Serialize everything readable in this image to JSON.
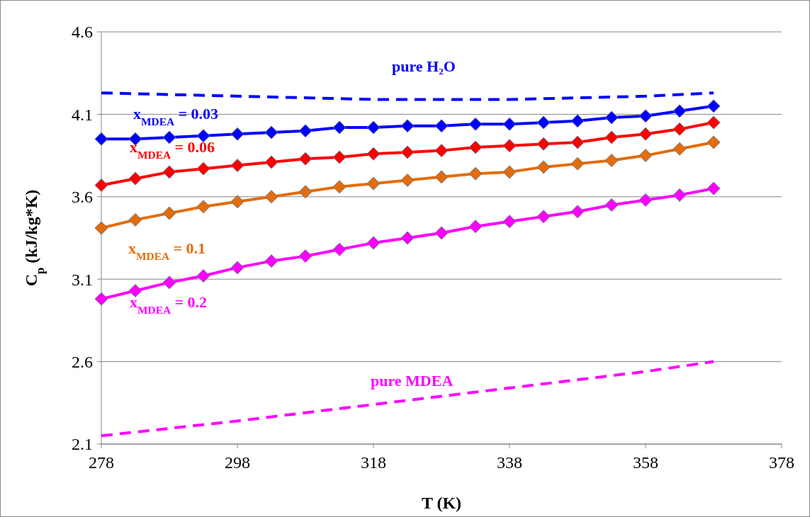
{
  "chart_data": {
    "type": "line",
    "xlabel": "T (K)",
    "ylabel": "C$_{p}$ (kJ/kg*K)",
    "x": [
      278,
      283,
      288,
      293,
      298,
      303,
      308,
      313,
      318,
      323,
      328,
      333,
      338,
      343,
      348,
      353,
      358,
      363,
      368
    ],
    "xlim": [
      278,
      378
    ],
    "xticks": [
      278,
      298,
      318,
      338,
      358,
      378
    ],
    "ylim": [
      2.1,
      4.6
    ],
    "yticks": [
      2.1,
      2.6,
      3.1,
      3.6,
      4.1,
      4.6
    ],
    "grid": "y",
    "marker": "diamond",
    "line_style": "solid",
    "series": [
      {
        "name": "pure H₂O",
        "color": "#0000ff",
        "marker": "none",
        "line_style": "dashed",
        "x": [
          278,
          298,
          318,
          338,
          358,
          368
        ],
        "values": [
          4.23,
          4.21,
          4.19,
          4.19,
          4.21,
          4.23
        ]
      },
      {
        "name": "x$_{MDEA}$ = 0.03",
        "color": "#0000ff",
        "values": [
          3.95,
          3.95,
          3.96,
          3.97,
          3.98,
          3.99,
          4.0,
          4.02,
          4.02,
          4.03,
          4.03,
          4.04,
          4.04,
          4.05,
          4.06,
          4.08,
          4.09,
          4.12,
          4.15
        ]
      },
      {
        "name": "x$_{MDEA}$ = 0.06",
        "color": "#ff0000",
        "values": [
          3.67,
          3.71,
          3.75,
          3.77,
          3.79,
          3.81,
          3.83,
          3.84,
          3.86,
          3.87,
          3.88,
          3.9,
          3.91,
          3.92,
          3.93,
          3.96,
          3.98,
          4.01,
          4.05
        ]
      },
      {
        "name": "x$_{MDEA}$ = 0.1",
        "color": "#e46c0a",
        "values": [
          3.41,
          3.46,
          3.5,
          3.54,
          3.57,
          3.6,
          3.63,
          3.66,
          3.68,
          3.7,
          3.72,
          3.74,
          3.75,
          3.78,
          3.8,
          3.82,
          3.85,
          3.89,
          3.93
        ]
      },
      {
        "name": "x$_{MDEA}$ = 0.2",
        "color": "#ff00ff",
        "values": [
          2.98,
          3.03,
          3.08,
          3.12,
          3.17,
          3.21,
          3.24,
          3.28,
          3.32,
          3.35,
          3.38,
          3.42,
          3.45,
          3.48,
          3.51,
          3.55,
          3.58,
          3.61,
          3.65
        ]
      },
      {
        "name": "pure MDEA",
        "color": "#ff00ff",
        "marker": "none",
        "line_style": "dashed",
        "x": [
          278,
          298,
          318,
          338,
          358,
          368
        ],
        "values": [
          2.15,
          2.24,
          2.34,
          2.44,
          2.54,
          2.6
        ]
      }
    ]
  }
}
